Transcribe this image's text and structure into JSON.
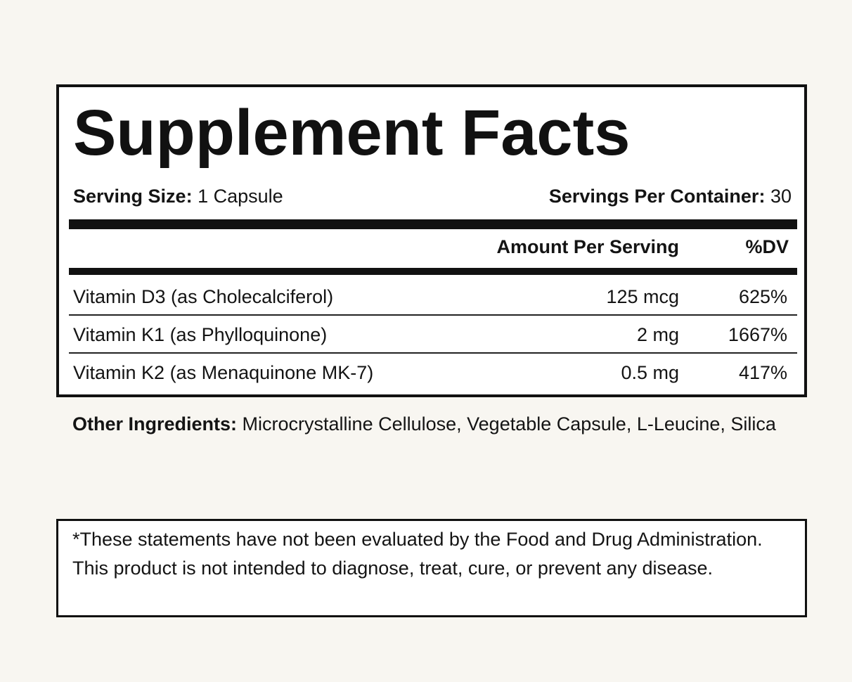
{
  "facts": {
    "title": "Supplement Facts",
    "serving_size_label": "Serving Size:",
    "serving_size_value": "1 Capsule",
    "servings_per_container_label": "Servings Per Container:",
    "servings_per_container_value": "30",
    "amount_header": "Amount Per Serving",
    "dv_header": "%DV",
    "nutrients": [
      {
        "name": "Vitamin D3 (as Cholecalciferol)",
        "amount": "125 mcg",
        "dv": "625%"
      },
      {
        "name": "Vitamin K1 (as Phylloquinone)",
        "amount": "2 mg",
        "dv": "1667%"
      },
      {
        "name": "Vitamin K2 (as Menaquinone MK-7)",
        "amount": "0.5 mg",
        "dv": "417%"
      }
    ]
  },
  "other_ingredients": {
    "label": "Other Ingredients:",
    "value": "Microcrystalline Cellulose, Vegetable Capsule, L-Leucine, Silica"
  },
  "disclaimer": {
    "text": "*These statements have not been evaluated by the Food and Drug Administration. This product is not intended to diagnose, treat, cure, or prevent any disease."
  },
  "colors": {
    "background": "#f8f6f1",
    "panel": "#ffffff",
    "ink": "#111111"
  }
}
